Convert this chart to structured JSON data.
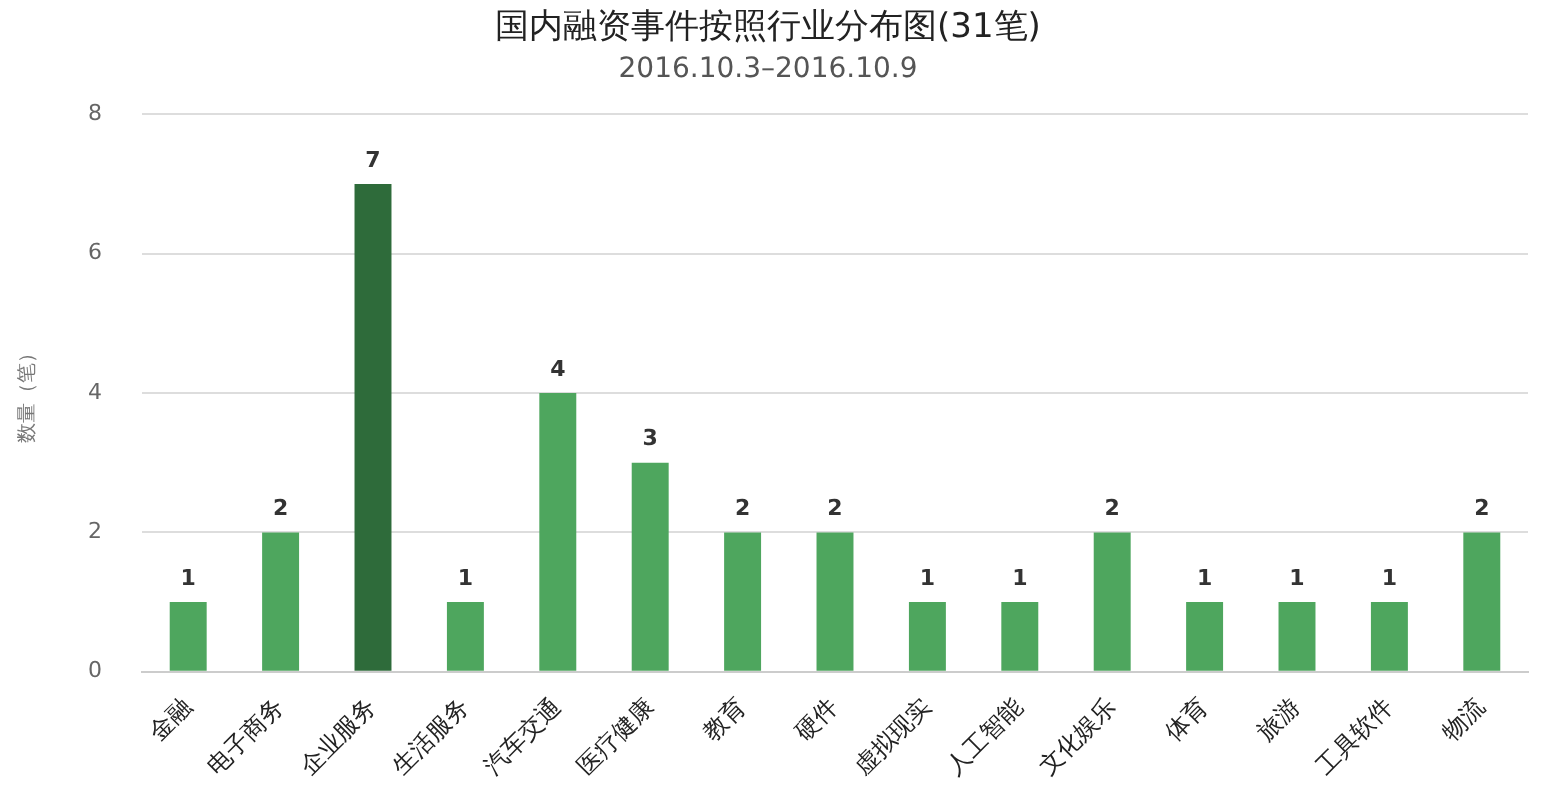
{
  "chart_data": {
    "type": "bar",
    "title": "国内融资事件按照行业分布图(31笔)",
    "subtitle": "2016.10.3–2016.10.9",
    "ylabel": "数量（笔）",
    "categories": [
      "金融",
      "电子商务",
      "企业服务",
      "生活服务",
      "汽车交通",
      "医疗健康",
      "教育",
      "硬件",
      "虚拟现实",
      "人工智能",
      "文化娱乐",
      "体育",
      "旅游",
      "工具软件",
      "物流"
    ],
    "values": [
      1,
      2,
      7,
      1,
      4,
      3,
      2,
      2,
      1,
      1,
      2,
      1,
      1,
      1,
      2
    ],
    "colors": [
      "#4ea65e",
      "#4ea65e",
      "#2e6b3a",
      "#4ea65e",
      "#4ea65e",
      "#4ea65e",
      "#4ea65e",
      "#4ea65e",
      "#4ea65e",
      "#4ea65e",
      "#4ea65e",
      "#4ea65e",
      "#4ea65e",
      "#4ea65e",
      "#4ea65e"
    ],
    "ylim": [
      0,
      8
    ],
    "yticks": [
      0,
      2,
      4,
      6,
      8
    ],
    "grid": "y",
    "data_labels": true,
    "legend": false
  }
}
